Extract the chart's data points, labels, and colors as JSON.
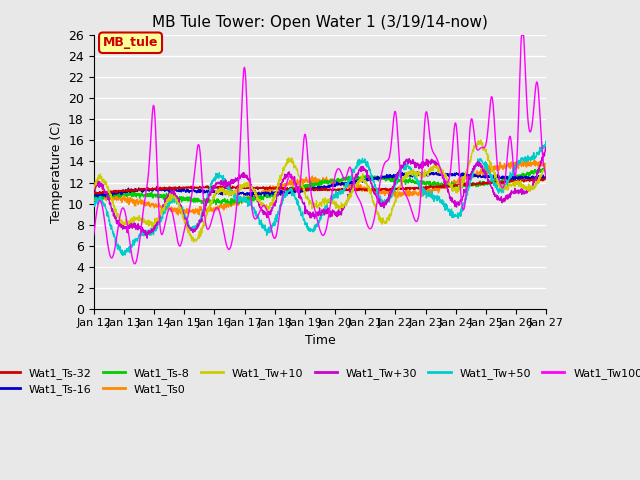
{
  "title": "MB Tule Tower: Open Water 1 (3/19/14-now)",
  "xlabel": "Time",
  "ylabel": "Temperature (C)",
  "ylim": [
    0,
    26
  ],
  "yticks": [
    0,
    2,
    4,
    6,
    8,
    10,
    12,
    14,
    16,
    18,
    20,
    22,
    24,
    26
  ],
  "xlim": [
    0,
    15
  ],
  "xtick_labels": [
    "Jan 12",
    "Jan 13",
    "Jan 14",
    "Jan 15",
    "Jan 16",
    "Jan 17",
    "Jan 18",
    "Jan 19",
    "Jan 20",
    "Jan 21",
    "Jan 22",
    "Jan 23",
    "Jan 24",
    "Jan 25",
    "Jan 26",
    "Jan 27"
  ],
  "xtick_positions": [
    0,
    1,
    2,
    3,
    4,
    5,
    6,
    7,
    8,
    9,
    10,
    11,
    12,
    13,
    14,
    15
  ],
  "bg_color": "#e8e8e8",
  "plot_bg_color": "#e8e8e8",
  "grid_color": "#ffffff",
  "legend_label": "MB_tule",
  "legend_bg": "#ffff99",
  "legend_border": "#cc0000",
  "series_colors": {
    "Wat1_Ts-32": "#cc0000",
    "Wat1_Ts-16": "#0000cc",
    "Wat1_Ts-8": "#00cc00",
    "Wat1_Ts0": "#ff8800",
    "Wat1_Tw+10": "#cccc00",
    "Wat1_Tw+30": "#cc00cc",
    "Wat1_Tw+50": "#00cccc",
    "Wat1_Tw100": "#ff00ff"
  }
}
